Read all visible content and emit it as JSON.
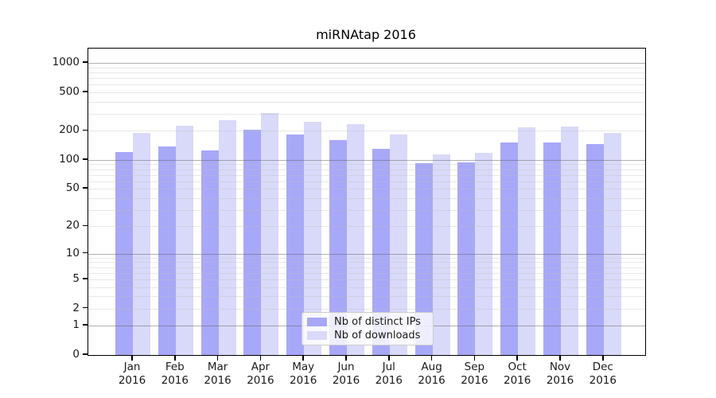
{
  "chart_data": {
    "type": "bar",
    "title": "miRNAtap 2016",
    "categories": [
      "Jan 2016",
      "Feb 2016",
      "Mar 2016",
      "Apr 2016",
      "May 2016",
      "Jun 2016",
      "Jul 2016",
      "Aug 2016",
      "Sep 2016",
      "Oct 2016",
      "Nov 2016",
      "Dec 2016"
    ],
    "series": [
      {
        "name": "Nb of distinct IPs",
        "color_key": "ips",
        "values": [
          121,
          137,
          125,
          206,
          183,
          160,
          131,
          93,
          94,
          151,
          153,
          146
        ]
      },
      {
        "name": "Nb of downloads",
        "color_key": "downloads",
        "values": [
          190,
          227,
          259,
          303,
          249,
          235,
          183,
          115,
          119,
          218,
          222,
          191
        ]
      }
    ],
    "yscale": "log1p",
    "yticks": [
      0,
      1,
      2,
      5,
      10,
      20,
      50,
      100,
      200,
      500,
      1000
    ],
    "major_grid_values": [
      1,
      10,
      100,
      1000
    ],
    "ylim": [
      0,
      1400
    ],
    "xlabel": "",
    "ylabel": "",
    "grid": true,
    "legend_position": "lower center"
  },
  "colors": {
    "ips": "#a8a8f8",
    "downloads": "#d9d9f9",
    "spine": "#000000",
    "background": "#ffffff"
  }
}
